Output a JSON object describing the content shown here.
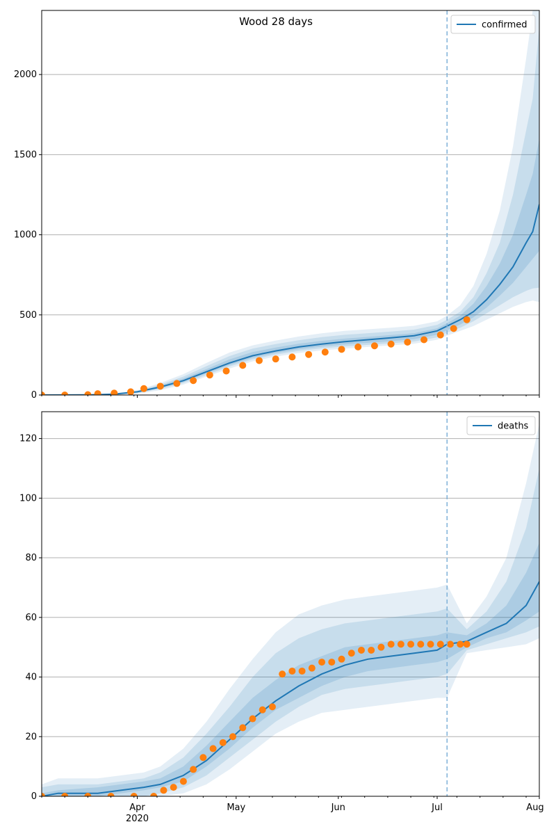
{
  "chart_data": [
    {
      "type": "line",
      "title": "Wood 28 days",
      "xlabel": "",
      "ylabel": "",
      "x_start": "2020-03-03",
      "x_end": "2020-08-01",
      "forecast_start": "2020-07-04",
      "ylim": [
        0,
        2400
      ],
      "yticks": [
        0,
        500,
        1000,
        1500,
        2000
      ],
      "xtick_labels": [
        "Apr",
        "2020",
        "May",
        "Jun",
        "Jul",
        "Aug"
      ],
      "grid": "y",
      "legend": "top-right",
      "legend_entries": [
        "confirmed"
      ],
      "colors": {
        "model": "#1f77b4",
        "observed": "#ff7f0e",
        "band": "#1f77b4",
        "vline": "#7fb1d8"
      },
      "model_series": {
        "name": "confirmed",
        "x": [
          "2020-03-03",
          "2020-03-18",
          "2020-03-25",
          "2020-04-01",
          "2020-04-08",
          "2020-04-15",
          "2020-04-22",
          "2020-04-29",
          "2020-05-06",
          "2020-05-13",
          "2020-05-20",
          "2020-05-27",
          "2020-06-03",
          "2020-06-10",
          "2020-06-17",
          "2020-06-24",
          "2020-07-01",
          "2020-07-04",
          "2020-07-08",
          "2020-07-12",
          "2020-07-16",
          "2020-07-20",
          "2020-07-24",
          "2020-07-28",
          "2020-07-30",
          "2020-08-01"
        ],
        "y": [
          0,
          1,
          5,
          20,
          50,
          90,
          145,
          200,
          245,
          275,
          300,
          318,
          333,
          345,
          357,
          370,
          400,
          430,
          470,
          520,
          595,
          690,
          800,
          950,
          1020,
          1190
        ],
        "bands": [
          {
            "lower": [
              0,
              0,
              0,
              8,
              30,
              65,
              115,
              165,
              210,
              240,
              262,
              278,
              290,
              300,
              310,
              320,
              345,
              370,
              400,
              430,
              470,
              510,
              550,
              580,
              590,
              580
            ],
            "upper": [
              3,
              4,
              10,
              30,
              75,
              130,
              200,
              265,
              310,
              340,
              365,
              385,
              400,
              410,
              420,
              432,
              460,
              495,
              560,
              680,
              880,
              1150,
              1550,
              2100,
              2400,
              2400
            ]
          },
          {
            "lower": [
              0,
              0,
              1,
              12,
              38,
              75,
              125,
              178,
              222,
              252,
              275,
              291,
              303,
              313,
              323,
              334,
              360,
              390,
              420,
              460,
              510,
              560,
              610,
              650,
              665,
              670
            ],
            "upper": [
              2,
              3,
              8,
              26,
              65,
              115,
              180,
              243,
              290,
              318,
              342,
              361,
              376,
              386,
              396,
              408,
              438,
              470,
              520,
              610,
              760,
              950,
              1250,
              1650,
              1850,
              2300
            ]
          },
          {
            "lower": [
              0,
              0,
              2,
              16,
              44,
              82,
              135,
              188,
              232,
              262,
              285,
              302,
              315,
              326,
              336,
              348,
              376,
              405,
              440,
              485,
              545,
              620,
              700,
              800,
              850,
              900
            ],
            "upper": [
              1,
              2,
              7,
              23,
              58,
              103,
              162,
              222,
              268,
              296,
              320,
              338,
              352,
              363,
              374,
              386,
              416,
              448,
              495,
              570,
              680,
              820,
              1000,
              1250,
              1380,
              1600
            ]
          }
        ]
      },
      "observed_series": {
        "x": [
          "2020-03-03",
          "2020-03-10",
          "2020-03-17",
          "2020-03-20",
          "2020-03-25",
          "2020-03-30",
          "2020-04-03",
          "2020-04-08",
          "2020-04-13",
          "2020-04-18",
          "2020-04-23",
          "2020-04-28",
          "2020-05-03",
          "2020-05-08",
          "2020-05-13",
          "2020-05-18",
          "2020-05-23",
          "2020-05-28",
          "2020-06-02",
          "2020-06-07",
          "2020-06-12",
          "2020-06-17",
          "2020-06-22",
          "2020-06-27",
          "2020-07-02",
          "2020-07-06",
          "2020-07-10"
        ],
        "y": [
          0,
          0,
          2,
          8,
          12,
          20,
          40,
          55,
          72,
          90,
          125,
          150,
          185,
          215,
          225,
          237,
          253,
          268,
          285,
          300,
          307,
          318,
          330,
          345,
          375,
          415,
          470
        ]
      }
    },
    {
      "type": "line",
      "title": "",
      "xlabel": "",
      "ylabel": "",
      "x_start": "2020-03-03",
      "x_end": "2020-08-01",
      "forecast_start": "2020-07-04",
      "ylim": [
        0,
        129
      ],
      "yticks": [
        0,
        20,
        40,
        60,
        80,
        100,
        120
      ],
      "xtick_labels": [
        "Apr",
        "2020",
        "May",
        "Jun",
        "Jul",
        "Aug"
      ],
      "grid": "y",
      "legend": "top-right",
      "legend_entries": [
        "deaths"
      ],
      "colors": {
        "model": "#1f77b4",
        "observed": "#ff7f0e",
        "band": "#1f77b4",
        "vline": "#7fb1d8"
      },
      "model_series": {
        "name": "deaths",
        "x": [
          "2020-03-03",
          "2020-03-08",
          "2020-03-20",
          "2020-03-27",
          "2020-04-03",
          "2020-04-08",
          "2020-04-15",
          "2020-04-22",
          "2020-04-29",
          "2020-05-06",
          "2020-05-13",
          "2020-05-20",
          "2020-05-27",
          "2020-06-03",
          "2020-06-10",
          "2020-06-17",
          "2020-06-24",
          "2020-07-01",
          "2020-07-04",
          "2020-07-10",
          "2020-07-16",
          "2020-07-22",
          "2020-07-28",
          "2020-08-01"
        ],
        "y": [
          0,
          1,
          1,
          2,
          3,
          4,
          7,
          12,
          19,
          26,
          32,
          37,
          41,
          44,
          46,
          47,
          48,
          49,
          51,
          52,
          55,
          58,
          64,
          72
        ],
        "bands": [
          {
            "lower": [
              0,
              0,
              0,
              0,
              0,
              0,
              1,
              4,
              9,
              15,
              21,
              25,
              28,
              29,
              30,
              31,
              32,
              33,
              33,
              48,
              49,
              50,
              51,
              53
            ],
            "upper": [
              4,
              6,
              6,
              7,
              8,
              10,
              16,
              25,
              36,
              46,
              55,
              61,
              64,
              66,
              67,
              68,
              69,
              70,
              71,
              58,
              67,
              80,
              105,
              125
            ]
          },
          {
            "lower": [
              0,
              0,
              0,
              0,
              0,
              1,
              3,
              7,
              13,
              19,
              25,
              30,
              34,
              36,
              37,
              38,
              39,
              40,
              41,
              49,
              51,
              53,
              55,
              57
            ],
            "upper": [
              3,
              4,
              4,
              5,
              6,
              8,
              13,
              21,
              30,
              40,
              48,
              53,
              56,
              58,
              59,
              60,
              61,
              62,
              63,
              56,
              62,
              72,
              90,
              110
            ]
          },
          {
            "lower": [
              0,
              0,
              0,
              1,
              2,
              3,
              5,
              10,
              16,
              23,
              29,
              33,
              37,
              40,
              42,
              43,
              44,
              45,
              46,
              50,
              53,
              55,
              59,
              62
            ],
            "upper": [
              1,
              2,
              3,
              4,
              5,
              6,
              10,
              17,
              25,
              33,
              39,
              44,
              47,
              50,
              51,
              52,
              53,
              54,
              55,
              54,
              58,
              64,
              75,
              85
            ]
          }
        ]
      },
      "observed_series": {
        "x": [
          "2020-03-03",
          "2020-03-10",
          "2020-03-17",
          "2020-03-24",
          "2020-03-31",
          "2020-04-06",
          "2020-04-09",
          "2020-04-12",
          "2020-04-15",
          "2020-04-18",
          "2020-04-21",
          "2020-04-24",
          "2020-04-27",
          "2020-04-30",
          "2020-05-03",
          "2020-05-06",
          "2020-05-09",
          "2020-05-12",
          "2020-05-15",
          "2020-05-18",
          "2020-05-21",
          "2020-05-24",
          "2020-05-27",
          "2020-05-30",
          "2020-06-02",
          "2020-06-05",
          "2020-06-08",
          "2020-06-11",
          "2020-06-14",
          "2020-06-17",
          "2020-06-20",
          "2020-06-23",
          "2020-06-26",
          "2020-06-29",
          "2020-07-02",
          "2020-07-05",
          "2020-07-08",
          "2020-07-10"
        ],
        "y": [
          0,
          0,
          0,
          0,
          0,
          0,
          2,
          3,
          5,
          9,
          13,
          16,
          18,
          20,
          23,
          26,
          29,
          30,
          41,
          42,
          42,
          43,
          45,
          45,
          46,
          48,
          49,
          49,
          50,
          51,
          51,
          51,
          51,
          51,
          51,
          51,
          51,
          51
        ]
      }
    }
  ]
}
